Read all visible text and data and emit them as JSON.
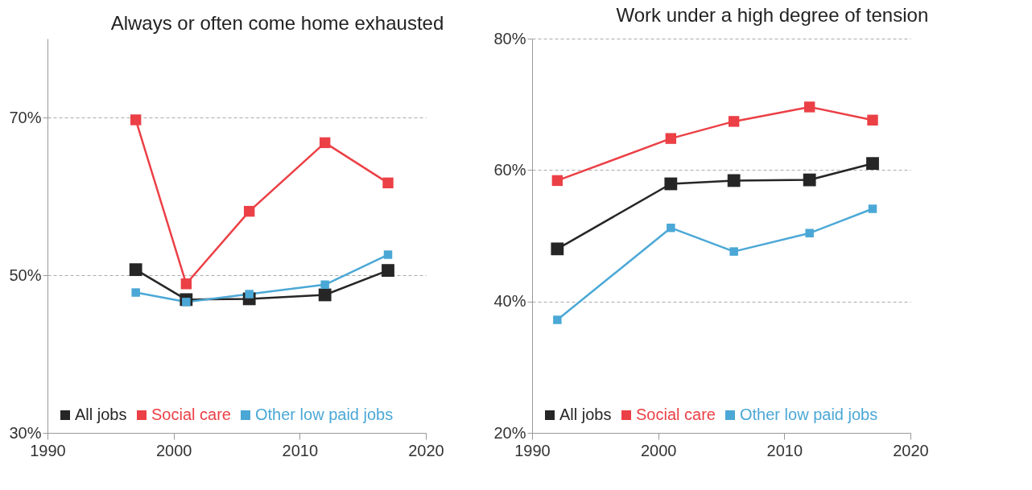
{
  "chart_data": [
    {
      "type": "line",
      "title": "Always or often come home exhausted",
      "x": [
        1997,
        2001,
        2006,
        2012,
        2017
      ],
      "xlim": [
        1990,
        2020
      ],
      "xticks": [
        1990,
        2000,
        2010,
        2020
      ],
      "ylim": [
        30,
        80
      ],
      "yticks": [
        {
          "value": 30,
          "label": "30%"
        },
        {
          "value": 50,
          "label": "50%"
        },
        {
          "value": 70,
          "label": "70%"
        }
      ],
      "grid": "y",
      "legend": "bottom left",
      "marker": "square",
      "line_style": "solid",
      "series": [
        {
          "name": "All jobs",
          "color": "#262626",
          "values": [
            50.7,
            46.9,
            47.0,
            47.5,
            50.6
          ]
        },
        {
          "name": "Social care",
          "color": "#eb4046",
          "values": [
            69.7,
            48.9,
            58.1,
            66.8,
            61.7
          ]
        },
        {
          "name": "Other low paid jobs",
          "color": "#4ba8d6",
          "values": [
            47.8,
            46.6,
            47.6,
            48.8,
            52.6
          ]
        }
      ]
    },
    {
      "type": "line",
      "title": "Work under a high degree of tension",
      "x": [
        1992,
        2001,
        2006,
        2012,
        2017
      ],
      "xlim": [
        1990,
        2020
      ],
      "xticks": [
        1990,
        2000,
        2010,
        2020
      ],
      "ylim": [
        20,
        80
      ],
      "yticks": [
        {
          "value": 20,
          "label": "20%"
        },
        {
          "value": 40,
          "label": "40%"
        },
        {
          "value": 60,
          "label": "60%"
        },
        {
          "value": 80,
          "label": "80%"
        }
      ],
      "grid": "y",
      "legend": "bottom left",
      "marker": "square",
      "line_style": "solid",
      "series": [
        {
          "name": "All jobs",
          "color": "#262626",
          "values": [
            48.0,
            57.9,
            58.4,
            58.5,
            61.0
          ]
        },
        {
          "name": "Social care",
          "color": "#eb4046",
          "values": [
            58.4,
            64.8,
            67.4,
            69.6,
            67.6
          ]
        },
        {
          "name": "Other low paid jobs",
          "color": "#4ba8d6",
          "values": [
            37.2,
            51.2,
            47.6,
            50.4,
            54.1
          ]
        }
      ]
    }
  ]
}
